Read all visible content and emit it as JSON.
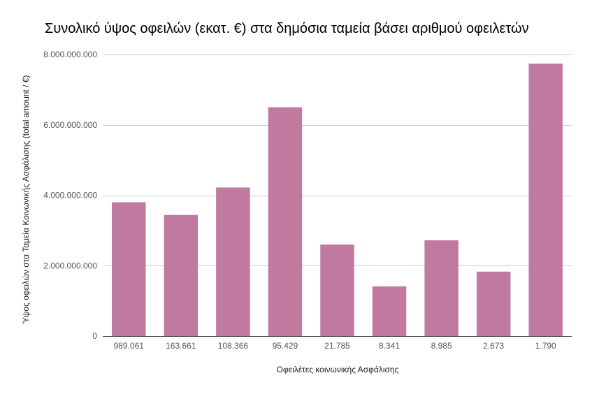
{
  "chart_data": {
    "type": "bar",
    "title": "Συνολικό ύψος οφειλών (εκατ. €) στα δημόσια ταμεία βάσει αριθμού οφειλετών",
    "xlabel": "Οφειλέτες κοινωνικής Ασφάλισης",
    "ylabel": "Ύψος οφειλών στα Ταμεία Κοινωνικής Ασφάλισης (total amount / €)",
    "categories": [
      "989.061",
      "163.661",
      "108.366",
      "95.429",
      "21.785",
      "8.341",
      "8.985",
      "2.673",
      "1.790"
    ],
    "values": [
      3800000000,
      3440000000,
      4220000000,
      6500000000,
      2600000000,
      1410000000,
      2720000000,
      1830000000,
      7740000000
    ],
    "ylim": [
      0,
      8000000000
    ],
    "yticks": [
      0,
      2000000000,
      4000000000,
      6000000000,
      8000000000
    ],
    "ytick_labels": [
      "0",
      "2.000.000.000",
      "4.000.000.000",
      "6.000.000.000",
      "8.000.000.000"
    ],
    "grid": true,
    "bar_color": "#c0799f"
  }
}
